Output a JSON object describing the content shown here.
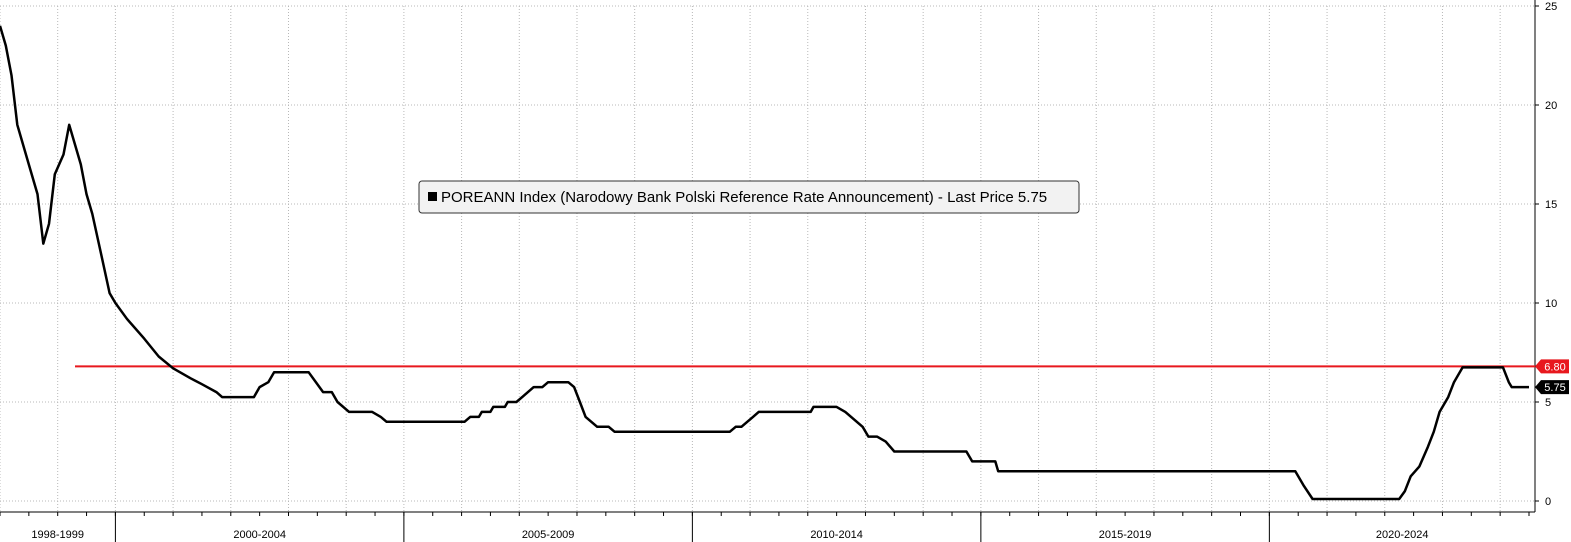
{
  "chart_data": {
    "type": "line",
    "ylim": [
      0,
      25
    ],
    "y_ticks": [
      0,
      5,
      10,
      15,
      20,
      25
    ],
    "grid": true,
    "legend_position": "top-center",
    "legend": {
      "text": "POREANN Index (Narodowy Bank Polski Reference Rate Announcement) - Last Price 5.75",
      "marker_color": "#000000"
    },
    "x_periods": [
      {
        "label": "1998-1999",
        "start": 1998.0,
        "end": 2000.0
      },
      {
        "label": "2000-2004",
        "start": 2000.0,
        "end": 2005.0
      },
      {
        "label": "2005-2009",
        "start": 2005.0,
        "end": 2010.0
      },
      {
        "label": "2010-2014",
        "start": 2010.0,
        "end": 2015.0
      },
      {
        "label": "2015-2019",
        "start": 2015.0,
        "end": 2020.0
      },
      {
        "label": "2020-2024",
        "start": 2020.0,
        "end": 2025.0
      }
    ],
    "xlim": [
      1998.0,
      2024.5
    ],
    "series": [
      {
        "color": "#000000",
        "points": [
          [
            1998.0,
            24.0
          ],
          [
            1998.1,
            23.0
          ],
          [
            1998.2,
            21.5
          ],
          [
            1998.3,
            19.0
          ],
          [
            1998.5,
            17.0
          ],
          [
            1998.65,
            15.5
          ],
          [
            1998.75,
            13.0
          ],
          [
            1998.85,
            14.0
          ],
          [
            1998.95,
            16.5
          ],
          [
            1999.1,
            17.5
          ],
          [
            1999.2,
            19.0
          ],
          [
            1999.4,
            17.0
          ],
          [
            1999.5,
            15.5
          ],
          [
            1999.6,
            14.5
          ],
          [
            1999.75,
            12.5
          ],
          [
            1999.9,
            10.5
          ],
          [
            2000.0,
            10.0
          ],
          [
            2000.2,
            9.2
          ],
          [
            2000.5,
            8.2
          ],
          [
            2000.75,
            7.3
          ],
          [
            2001.0,
            6.7
          ],
          [
            2001.3,
            6.2
          ],
          [
            2001.5,
            5.9
          ],
          [
            2001.75,
            5.5
          ],
          [
            2001.85,
            5.25
          ],
          [
            2002.4,
            5.25
          ],
          [
            2002.5,
            5.75
          ],
          [
            2002.65,
            6.0
          ],
          [
            2002.75,
            6.5
          ],
          [
            2003.35,
            6.5
          ],
          [
            2003.6,
            5.5
          ],
          [
            2003.75,
            5.5
          ],
          [
            2003.85,
            5.0
          ],
          [
            2004.05,
            4.5
          ],
          [
            2004.45,
            4.5
          ],
          [
            2004.6,
            4.25
          ],
          [
            2004.7,
            4.0
          ],
          [
            2006.05,
            4.0
          ],
          [
            2006.15,
            4.25
          ],
          [
            2006.3,
            4.25
          ],
          [
            2006.35,
            4.5
          ],
          [
            2006.5,
            4.5
          ],
          [
            2006.55,
            4.75
          ],
          [
            2006.75,
            4.75
          ],
          [
            2006.8,
            5.0
          ],
          [
            2006.95,
            5.0
          ],
          [
            2007.05,
            5.25
          ],
          [
            2007.25,
            5.75
          ],
          [
            2007.4,
            5.75
          ],
          [
            2007.5,
            6.0
          ],
          [
            2007.85,
            6.0
          ],
          [
            2007.95,
            5.75
          ],
          [
            2008.05,
            5.0
          ],
          [
            2008.15,
            4.25
          ],
          [
            2008.35,
            3.75
          ],
          [
            2008.55,
            3.75
          ],
          [
            2008.65,
            3.5
          ],
          [
            2010.65,
            3.5
          ],
          [
            2010.75,
            3.75
          ],
          [
            2010.85,
            3.75
          ],
          [
            2011.05,
            4.25
          ],
          [
            2011.15,
            4.5
          ],
          [
            2012.05,
            4.5
          ],
          [
            2012.1,
            4.75
          ],
          [
            2012.5,
            4.75
          ],
          [
            2012.65,
            4.5
          ],
          [
            2012.85,
            4.0
          ],
          [
            2012.95,
            3.75
          ],
          [
            2013.05,
            3.25
          ],
          [
            2013.2,
            3.25
          ],
          [
            2013.35,
            3.0
          ],
          [
            2013.5,
            2.5
          ],
          [
            2014.75,
            2.5
          ],
          [
            2014.85,
            2.0
          ],
          [
            2015.25,
            2.0
          ],
          [
            2015.3,
            1.5
          ],
          [
            2020.45,
            1.5
          ],
          [
            2020.6,
            0.75
          ],
          [
            2020.75,
            0.1
          ],
          [
            2022.25,
            0.1
          ],
          [
            2022.35,
            0.5
          ],
          [
            2022.45,
            1.25
          ],
          [
            2022.6,
            1.75
          ],
          [
            2022.75,
            2.75
          ],
          [
            2022.85,
            3.5
          ],
          [
            2022.95,
            4.5
          ],
          [
            2023.1,
            5.25
          ],
          [
            2023.2,
            6.0
          ],
          [
            2023.35,
            6.75
          ],
          [
            2024.05,
            6.75
          ],
          [
            2024.15,
            6.0
          ],
          [
            2024.2,
            5.75
          ],
          [
            2024.5,
            5.75
          ]
        ]
      }
    ],
    "reference_line": {
      "value": 6.8,
      "label": "6.80",
      "color": "#e8181e",
      "start_x": 1999.3
    },
    "last_price": {
      "value": 5.75,
      "label": "5.75",
      "color": "#000000"
    }
  }
}
